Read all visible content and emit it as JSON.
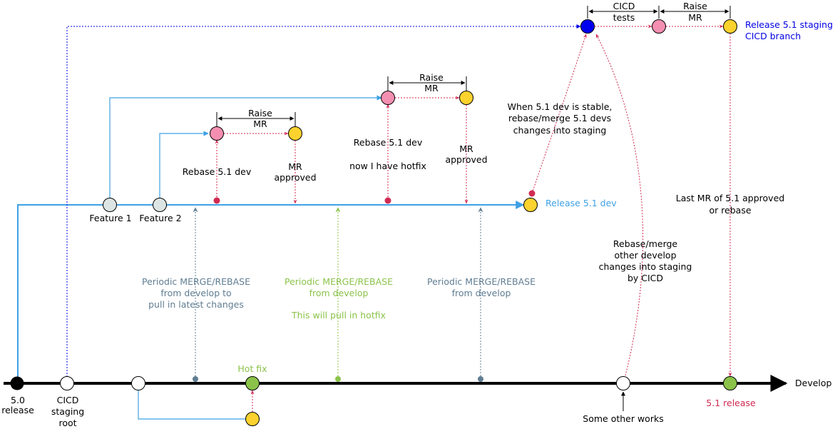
{
  "colors": {
    "develop": "#000000",
    "release_dev": "#3ea1e6",
    "staging": "#0000e6",
    "rebase": "#d02a52",
    "periodic_slate": "#5f7d92",
    "periodic_green": "#8bc34a",
    "node_yellow": "#fcd22e",
    "node_pink": "#f48fb1",
    "node_grey": "#dde4e4",
    "node_green": "#8bc34a",
    "staging_node": "#0000ee",
    "release_label": "#d02a52"
  },
  "labels": {
    "develop": "Develop",
    "release_50_line1": "5.0",
    "release_50_line2": "release",
    "cicd_root_line1": "CICD",
    "cicd_root_line2": "staging",
    "cicd_root_line3": "root",
    "hotfix": "Hot fix",
    "some_other_works": "Some other works",
    "release_51": "5.1 release",
    "release_51_dev": "Release 5.1 dev",
    "feature1": "Feature 1",
    "feature2": "Feature 2",
    "rebase_51_dev_a": "Rebase 5.1 dev",
    "raise_mr_a_line1": "Raise",
    "raise_mr_a_line2": "MR",
    "mr_approved_a_line1": "MR",
    "mr_approved_a_line2": "approved",
    "rebase_51_dev_b": "Rebase 5.1 dev",
    "now_hotfix": "now I have hotfix",
    "raise_mr_b_line1": "Raise",
    "raise_mr_b_line2": "MR",
    "mr_approved_b_line1": "MR",
    "mr_approved_b_line2": "approved",
    "periodic1_line1": "Periodic MERGE/REBASE",
    "periodic1_line2": "from develop to",
    "periodic1_line3": "pull in latest changes",
    "periodic2_line1": "Periodic MERGE/REBASE",
    "periodic2_line2": "from develop",
    "periodic2_line3": "This will pull in hotfix",
    "periodic3_line1": "Periodic MERGE/REBASE",
    "periodic3_line2": "from develop",
    "stable_line1": "When 5.1 dev is stable,",
    "stable_line2": "rebase/merge 5.1 devs",
    "stable_line3": "changes into staging",
    "rebase_other_line1": "Rebase/merge",
    "rebase_other_line2": "other develop",
    "rebase_other_line3": "changes into staging",
    "rebase_other_line4": "by CICD",
    "last_mr_line1": "Last MR of 5.1 approved",
    "last_mr_line2": "or rebase",
    "cicd_tests_line1": "CICD",
    "cicd_tests_line2": "tests",
    "raise_mr_top_line1": "Raise",
    "raise_mr_top_line2": "MR",
    "staging_branch_line1": "Release 5.1 staging",
    "staging_branch_line2": "CICD branch"
  }
}
